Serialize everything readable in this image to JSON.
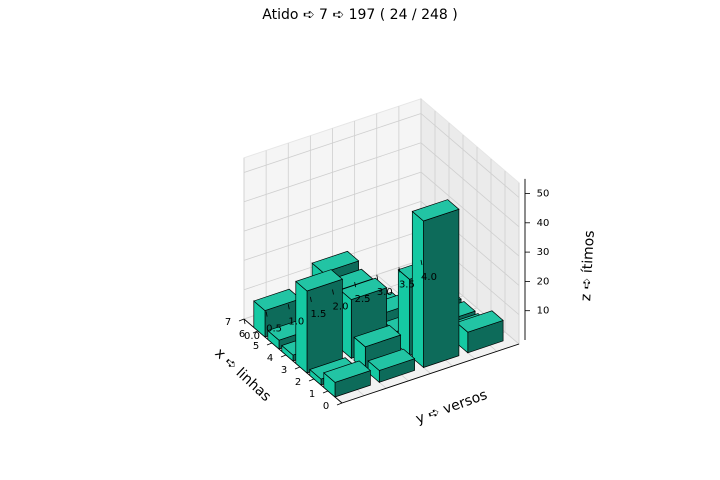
{
  "chart_data": {
    "type": "bar3d",
    "title": "Atido ➪ 7 ➪ 197 ( 24 / 248 )",
    "xlabel": "x ➪ linhas",
    "ylabel": "y ➪ versos",
    "zlabel": "z ➪ ítimos",
    "x_ticks": [
      "0",
      "1",
      "2",
      "3",
      "4",
      "5",
      "6",
      "7"
    ],
    "y_ticks": [
      "0.0",
      "0.5",
      "1.0",
      "1.5",
      "2.0",
      "2.5",
      "3.0",
      "3.5",
      "4.0"
    ],
    "z_ticks": [
      "10",
      "20",
      "30",
      "40",
      "50"
    ],
    "xlim": [
      0,
      7
    ],
    "ylim": [
      0,
      4
    ],
    "zlim": [
      0,
      55
    ],
    "grid": true,
    "bar_color": "#1abc9c",
    "bars": [
      {
        "x": 1,
        "y": 0,
        "z": 5
      },
      {
        "x": 1,
        "y": 1,
        "z": 4
      },
      {
        "x": 1,
        "y": 2,
        "z": 50
      },
      {
        "x": 1,
        "y": 3,
        "z": 7
      },
      {
        "x": 2,
        "y": 0,
        "z": 2
      },
      {
        "x": 2,
        "y": 1,
        "z": 8
      },
      {
        "x": 2,
        "y": 2,
        "z": 26
      },
      {
        "x": 2,
        "y": 3,
        "z": 2
      },
      {
        "x": 3,
        "y": 0,
        "z": 28
      },
      {
        "x": 3,
        "y": 1,
        "z": 20
      },
      {
        "x": 3,
        "y": 2,
        "z": 4
      },
      {
        "x": 3,
        "y": 3,
        "z": 2
      },
      {
        "x": 4,
        "y": 0,
        "z": 2
      },
      {
        "x": 4,
        "y": 1,
        "z": 19
      },
      {
        "x": 4,
        "y": 2,
        "z": 6
      },
      {
        "x": 4,
        "y": 3,
        "z": 2
      },
      {
        "x": 5,
        "y": 0,
        "z": 3
      },
      {
        "x": 5,
        "y": 1,
        "z": 21
      },
      {
        "x": 5,
        "y": 2,
        "z": 2
      },
      {
        "x": 6,
        "y": 0,
        "z": 9
      },
      {
        "x": 6,
        "y": 1,
        "z": 6
      }
    ]
  }
}
